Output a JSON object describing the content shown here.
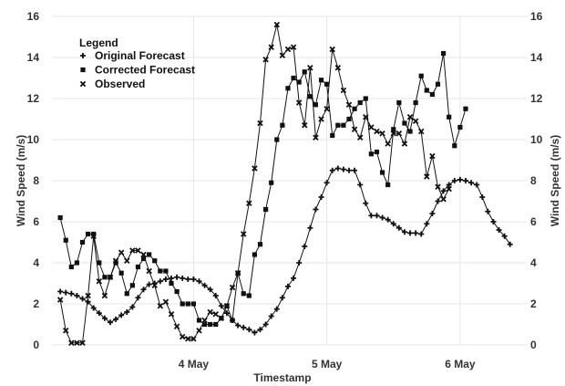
{
  "chart_data": {
    "type": "line",
    "xlabel": "Timestamp",
    "ylabel_left": "Wind Speed (m/s)",
    "ylabel_right": "Wind Speed (m/s)",
    "ylim": [
      0,
      16
    ],
    "y_ticks": [
      0,
      2,
      4,
      6,
      8,
      10,
      12,
      14,
      16
    ],
    "x_tick_labels": [
      "4 May",
      "5 May",
      "6 May"
    ],
    "x_tick_positions_hours": [
      24,
      48,
      72
    ],
    "x_range_hours": [
      -1.5,
      84.0
    ],
    "x_unit_note": "hours",
    "grid": true,
    "legend": {
      "title": "Legend",
      "placement": "top-left",
      "entries": [
        {
          "label": "Original Forecast",
          "marker": "plus"
        },
        {
          "label": "Corrected Forecast",
          "marker": "square"
        },
        {
          "label": "Observed",
          "marker": "x"
        }
      ]
    },
    "series": [
      {
        "name": "Original Forecast",
        "marker": "plus",
        "points": [
          [
            0,
            2.6
          ],
          [
            1,
            2.55
          ],
          [
            2,
            2.5
          ],
          [
            3,
            2.4
          ],
          [
            4,
            2.25
          ],
          [
            5,
            2.1
          ],
          [
            6,
            1.8
          ],
          [
            7,
            1.55
          ],
          [
            8,
            1.3
          ],
          [
            9,
            1.1
          ],
          [
            10,
            1.25
          ],
          [
            11,
            1.45
          ],
          [
            12,
            1.6
          ],
          [
            13,
            1.85
          ],
          [
            14,
            2.3
          ],
          [
            15,
            2.7
          ],
          [
            16,
            2.95
          ],
          [
            17,
            3.0
          ],
          [
            18,
            3.1
          ],
          [
            19,
            3.2
          ],
          [
            20,
            3.25
          ],
          [
            21,
            3.3
          ],
          [
            22,
            3.25
          ],
          [
            23,
            3.2
          ],
          [
            24,
            3.2
          ],
          [
            25,
            3.1
          ],
          [
            26,
            2.9
          ],
          [
            27,
            2.7
          ],
          [
            28,
            2.4
          ],
          [
            29,
            1.9
          ],
          [
            30,
            1.55
          ],
          [
            31,
            1.2
          ],
          [
            32,
            0.95
          ],
          [
            33,
            0.85
          ],
          [
            34,
            0.75
          ],
          [
            35,
            0.6
          ],
          [
            36,
            0.75
          ],
          [
            37,
            1.0
          ],
          [
            38,
            1.4
          ],
          [
            39,
            1.75
          ],
          [
            40,
            2.3
          ],
          [
            41,
            2.85
          ],
          [
            42,
            3.25
          ],
          [
            43,
            4.0
          ],
          [
            44,
            4.8
          ],
          [
            45,
            5.7
          ],
          [
            46,
            6.6
          ],
          [
            47,
            7.2
          ],
          [
            48,
            7.9
          ],
          [
            49,
            8.5
          ],
          [
            50,
            8.6
          ],
          [
            51,
            8.55
          ],
          [
            52,
            8.5
          ],
          [
            53,
            8.5
          ],
          [
            54,
            7.8
          ],
          [
            55,
            6.9
          ],
          [
            56,
            6.3
          ],
          [
            57,
            6.3
          ],
          [
            58,
            6.2
          ],
          [
            59,
            6.1
          ],
          [
            60,
            5.9
          ],
          [
            61,
            5.7
          ],
          [
            62,
            5.5
          ],
          [
            63,
            5.45
          ],
          [
            64,
            5.45
          ],
          [
            65,
            5.4
          ],
          [
            66,
            5.9
          ],
          [
            67,
            6.4
          ],
          [
            68,
            7.0
          ],
          [
            69,
            7.5
          ],
          [
            70,
            7.8
          ],
          [
            71,
            8.0
          ],
          [
            72,
            8.05
          ],
          [
            73,
            8.0
          ],
          [
            74,
            7.9
          ],
          [
            75,
            7.8
          ],
          [
            76,
            7.2
          ],
          [
            77,
            6.5
          ],
          [
            78,
            6.0
          ],
          [
            79,
            5.6
          ],
          [
            80,
            5.3
          ],
          [
            81,
            4.9
          ]
        ]
      },
      {
        "name": "Corrected Forecast",
        "marker": "square",
        "points": [
          [
            0,
            6.2
          ],
          [
            1,
            5.1
          ],
          [
            2,
            3.8
          ],
          [
            3,
            4.0
          ],
          [
            4,
            5.0
          ],
          [
            5,
            5.4
          ],
          [
            6,
            5.4
          ],
          [
            7,
            4.0
          ],
          [
            8,
            3.3
          ],
          [
            9,
            3.3
          ],
          [
            10,
            4.0
          ],
          [
            11,
            3.5
          ],
          [
            12,
            2.5
          ],
          [
            13,
            2.9
          ],
          [
            14,
            3.8
          ],
          [
            15,
            4.2
          ],
          [
            16,
            4.4
          ],
          [
            17,
            4.1
          ],
          [
            18,
            3.6
          ],
          [
            19,
            3.6
          ],
          [
            20,
            3.0
          ],
          [
            21,
            2.6
          ],
          [
            22,
            2.0
          ],
          [
            23,
            2.0
          ],
          [
            24,
            2.0
          ],
          [
            25,
            1.2
          ],
          [
            26,
            1.0
          ],
          [
            27,
            1.0
          ],
          [
            28,
            1.0
          ],
          [
            29,
            1.3
          ],
          [
            30,
            1.9
          ],
          [
            31,
            1.2
          ],
          [
            32,
            3.5
          ],
          [
            33,
            2.5
          ],
          [
            34,
            2.4
          ],
          [
            35,
            4.4
          ],
          [
            36,
            4.9
          ],
          [
            37,
            6.6
          ],
          [
            38,
            7.9
          ],
          [
            39,
            10.0
          ],
          [
            40,
            10.7
          ],
          [
            41,
            12.5
          ],
          [
            42,
            13.0
          ],
          [
            43,
            12.8
          ],
          [
            44,
            13.3
          ],
          [
            45,
            12.1
          ],
          [
            46,
            11.7
          ],
          [
            47,
            12.9
          ],
          [
            48,
            12.7
          ],
          [
            49,
            10.2
          ],
          [
            50,
            10.7
          ],
          [
            51,
            10.7
          ],
          [
            52,
            11.0
          ],
          [
            53,
            11.5
          ],
          [
            54,
            11.8
          ],
          [
            55,
            12.0
          ],
          [
            56,
            9.3
          ],
          [
            57,
            9.4
          ],
          [
            58,
            8.4
          ],
          [
            59,
            7.8
          ],
          [
            60,
            10.5
          ],
          [
            61,
            11.8
          ],
          [
            62,
            10.8
          ],
          [
            63,
            10.4
          ],
          [
            64,
            11.8
          ],
          [
            65,
            13.1
          ],
          [
            66,
            12.4
          ],
          [
            67,
            12.2
          ],
          [
            68,
            12.7
          ],
          [
            69,
            14.2
          ],
          [
            70,
            11.1
          ],
          [
            71,
            9.7
          ],
          [
            72,
            10.6
          ],
          [
            73,
            11.5
          ]
        ]
      },
      {
        "name": "Observed",
        "marker": "x",
        "points": [
          [
            0,
            2.2
          ],
          [
            1,
            0.7
          ],
          [
            2,
            0.1
          ],
          [
            3,
            0.1
          ],
          [
            4,
            0.1
          ],
          [
            5,
            2.4
          ],
          [
            6,
            5.3
          ],
          [
            7,
            3.1
          ],
          [
            8,
            2.4
          ],
          [
            9,
            3.3
          ],
          [
            10,
            4.1
          ],
          [
            11,
            4.5
          ],
          [
            12,
            4.1
          ],
          [
            13,
            4.6
          ],
          [
            14,
            4.6
          ],
          [
            15,
            4.4
          ],
          [
            16,
            3.6
          ],
          [
            17,
            2.9
          ],
          [
            18,
            1.9
          ],
          [
            19,
            2.1
          ],
          [
            20,
            1.5
          ],
          [
            21,
            0.9
          ],
          [
            22,
            0.4
          ],
          [
            23,
            0.3
          ],
          [
            24,
            0.3
          ],
          [
            25,
            0.7
          ],
          [
            26,
            1.2
          ],
          [
            27,
            1.6
          ],
          [
            28,
            1.5
          ],
          [
            29,
            1.3
          ],
          [
            30,
            1.9
          ],
          [
            31,
            2.8
          ],
          [
            32,
            3.5
          ],
          [
            33,
            5.4
          ],
          [
            34,
            6.9
          ],
          [
            35,
            8.6
          ],
          [
            36,
            10.8
          ],
          [
            37,
            13.9
          ],
          [
            38,
            14.5
          ],
          [
            39,
            15.6
          ],
          [
            40,
            14.1
          ],
          [
            41,
            14.4
          ],
          [
            42,
            14.5
          ],
          [
            43,
            11.8
          ],
          [
            44,
            10.7
          ],
          [
            45,
            13.5
          ],
          [
            46,
            10.1
          ],
          [
            47,
            11.0
          ],
          [
            48,
            11.5
          ],
          [
            49,
            14.4
          ],
          [
            50,
            13.5
          ],
          [
            51,
            12.4
          ],
          [
            52,
            11.7
          ],
          [
            53,
            10.5
          ],
          [
            54,
            10.1
          ],
          [
            55,
            11.1
          ],
          [
            56,
            10.6
          ],
          [
            57,
            10.4
          ],
          [
            58,
            10.3
          ],
          [
            59,
            9.8
          ],
          [
            60,
            10.3
          ],
          [
            61,
            10.3
          ],
          [
            62,
            9.8
          ],
          [
            63,
            11.1
          ],
          [
            64,
            10.9
          ],
          [
            65,
            10.4
          ],
          [
            66,
            8.2
          ],
          [
            67,
            9.2
          ],
          [
            68,
            7.7
          ],
          [
            69,
            7.1
          ],
          [
            70,
            7.6
          ]
        ]
      }
    ]
  }
}
